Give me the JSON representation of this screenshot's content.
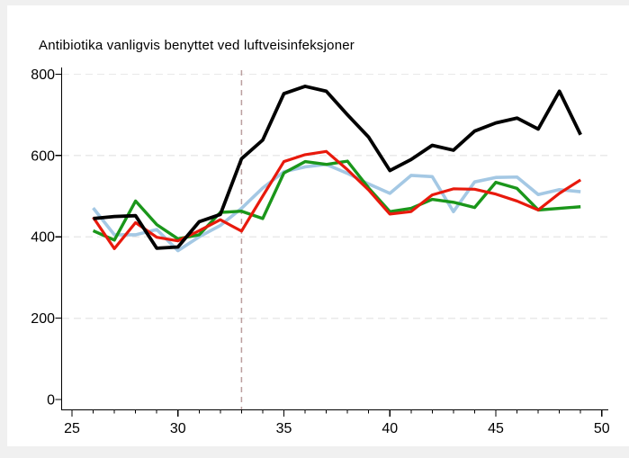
{
  "chart_data": {
    "type": "line",
    "title": "Antibiotika vanligvis benyttet ved luftveisinfeksjoner",
    "xlabel": "",
    "ylabel": "",
    "x_unit": "week",
    "x": [
      26,
      27,
      28,
      29,
      30,
      31,
      32,
      33,
      34,
      35,
      36,
      37,
      38,
      39,
      40,
      41,
      42,
      43,
      44,
      45,
      46,
      47,
      48,
      49
    ],
    "x_ticks": [
      25,
      30,
      35,
      40,
      45,
      50
    ],
    "y_ticks": [
      0,
      200,
      400,
      600,
      800
    ],
    "xlim": [
      25,
      50.3
    ],
    "ylim": [
      0,
      830
    ],
    "grid": "horizontal-dashed",
    "legend": "none",
    "reference_line_x": 33,
    "series": [
      {
        "name": "lightblue",
        "color": "#a4c8e4",
        "width": 3.6,
        "values": [
          471,
          405,
          405,
          418,
          366,
          400,
          428,
          470,
          520,
          560,
          572,
          578,
          556,
          530,
          507,
          551,
          548,
          462,
          535,
          546,
          547,
          504,
          516,
          511
        ]
      },
      {
        "name": "green",
        "color": "#1a961a",
        "width": 3.4,
        "values": [
          415,
          392,
          488,
          430,
          395,
          405,
          460,
          463,
          445,
          557,
          585,
          578,
          586,
          520,
          462,
          470,
          492,
          485,
          472,
          534,
          519,
          466,
          470,
          474
        ]
      },
      {
        "name": "red",
        "color": "#e8190c",
        "width": 3.2,
        "values": [
          448,
          371,
          435,
          399,
          390,
          415,
          442,
          414,
          500,
          585,
          602,
          610,
          565,
          515,
          456,
          462,
          503,
          518,
          517,
          505,
          488,
          466,
          507,
          540
        ]
      },
      {
        "name": "black",
        "color": "#000000",
        "width": 3.8,
        "values": [
          445,
          450,
          452,
          372,
          375,
          437,
          455,
          592,
          638,
          752,
          770,
          758,
          700,
          645,
          563,
          590,
          625,
          613,
          660,
          680,
          692,
          665,
          758,
          651
        ]
      }
    ],
    "colors": {
      "grid": "#e9e9e9",
      "ref_line": "#bb9f9f",
      "axis": "#000000",
      "background": "#ffffff",
      "outer_margin": "#f0f0f0"
    }
  }
}
